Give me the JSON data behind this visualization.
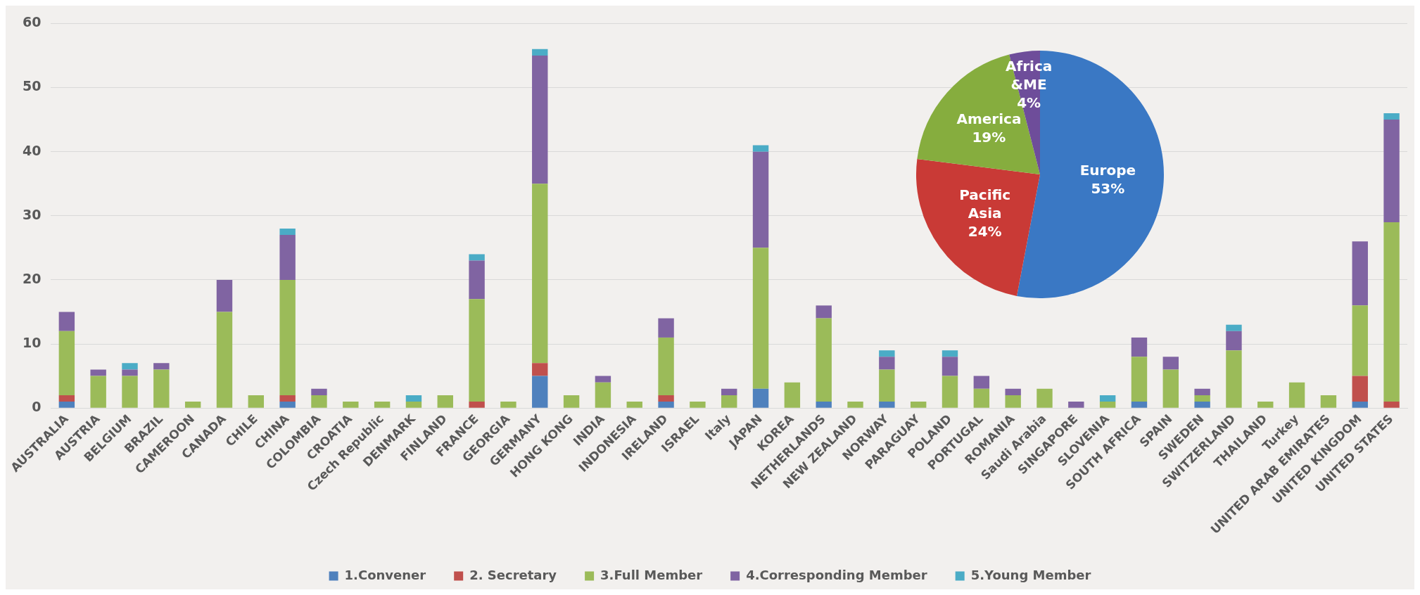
{
  "chart_data": [
    {
      "type": "bar",
      "stacked": true,
      "categories": [
        "AUSTRALIA",
        "AUSTRIA",
        "BELGIUM",
        "BRAZIL",
        "CAMEROON",
        "CANADA",
        "CHILE",
        "CHINA",
        "COLOMBIA",
        "CROATIA",
        "Czech Republic",
        "DENMARK",
        "FINLAND",
        "FRANCE",
        "GEORGIA",
        "GERMANY",
        "HONG KONG",
        "INDIA",
        "INDONESIA",
        "IRELAND",
        "ISRAEL",
        "Italy",
        "JAPAN",
        "KOREA",
        "NETHERLANDS",
        "NEW ZEALAND",
        "NORWAY",
        "PARAGUAY",
        "POLAND",
        "PORTUGAL",
        "ROMANIA",
        "Saudi Arabia",
        "SINGAPORE",
        "SLOVENIA",
        "SOUTH AFRICA",
        "SPAIN",
        "SWEDEN",
        "SWITZERLAND",
        "THAILAND",
        "Turkey",
        "UNITED ARAB EMIRATES",
        "UNITED KINGDOM",
        "UNITED STATES"
      ],
      "series": [
        {
          "name": "1.Convener",
          "color": "#4f81bd",
          "values": [
            1,
            0,
            0,
            0,
            0,
            0,
            0,
            1,
            0,
            0,
            0,
            0,
            0,
            0,
            0,
            5,
            0,
            0,
            0,
            1,
            0,
            0,
            3,
            0,
            1,
            0,
            1,
            0,
            0,
            0,
            0,
            0,
            0,
            0,
            1,
            0,
            1,
            0,
            0,
            0,
            0,
            1,
            0
          ]
        },
        {
          "name": "2. Secretary",
          "color": "#c0504d",
          "values": [
            1,
            0,
            0,
            0,
            0,
            0,
            0,
            1,
            0,
            0,
            0,
            0,
            0,
            1,
            0,
            2,
            0,
            0,
            0,
            1,
            0,
            0,
            0,
            0,
            0,
            0,
            0,
            0,
            0,
            0,
            0,
            0,
            0,
            0,
            0,
            0,
            0,
            0,
            0,
            0,
            0,
            4,
            1
          ]
        },
        {
          "name": "3.Full Member",
          "color": "#9bbb59",
          "values": [
            10,
            5,
            5,
            6,
            1,
            15,
            2,
            18,
            2,
            1,
            1,
            1,
            2,
            16,
            1,
            28,
            2,
            4,
            1,
            9,
            1,
            2,
            22,
            4,
            13,
            1,
            5,
            1,
            5,
            3,
            2,
            3,
            0,
            1,
            7,
            6,
            1,
            9,
            1,
            4,
            2,
            11,
            28
          ]
        },
        {
          "name": "4.Corresponding Member",
          "color": "#8064a2",
          "values": [
            3,
            1,
            1,
            1,
            0,
            5,
            0,
            7,
            1,
            0,
            0,
            0,
            0,
            6,
            0,
            20,
            0,
            1,
            0,
            3,
            0,
            1,
            15,
            0,
            2,
            0,
            2,
            0,
            3,
            2,
            1,
            0,
            1,
            0,
            3,
            2,
            1,
            3,
            0,
            0,
            0,
            10,
            16
          ]
        },
        {
          "name": "5.Young Member",
          "color": "#4bacc6",
          "values": [
            0,
            0,
            1,
            0,
            0,
            0,
            0,
            1,
            0,
            0,
            0,
            1,
            0,
            1,
            0,
            1,
            0,
            0,
            0,
            0,
            0,
            0,
            1,
            0,
            0,
            0,
            1,
            0,
            1,
            0,
            0,
            0,
            0,
            1,
            0,
            0,
            0,
            1,
            0,
            0,
            0,
            0,
            1
          ]
        }
      ],
      "ylim": [
        0,
        60
      ],
      "yticks": [
        0,
        10,
        20,
        30,
        40,
        50,
        60
      ],
      "grid": "y",
      "legend": "bottom"
    },
    {
      "type": "pie",
      "categories": [
        "Europe",
        "Pacific Asia",
        "America",
        "Africa &ME"
      ],
      "values": [
        53,
        24,
        19,
        4
      ],
      "value_labels": [
        "53%",
        "24%",
        "19%",
        "4%"
      ],
      "colors": [
        "#3a78c4",
        "#c93a36",
        "#86ad3e",
        "#6e4d9a"
      ],
      "data_labels": true,
      "legend": false
    }
  ]
}
